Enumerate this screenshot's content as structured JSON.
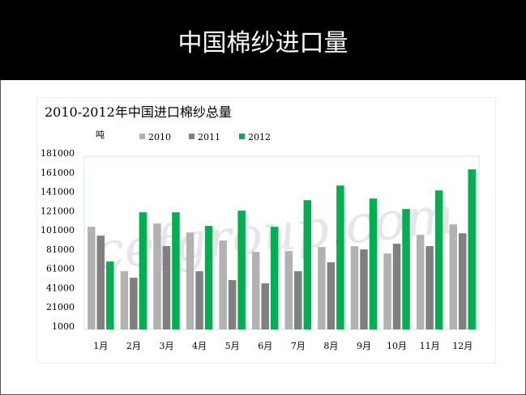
{
  "slide": {
    "title": "中国棉纱进口量"
  },
  "colors": {
    "2010": "#b2b2b2",
    "2011": "#808080",
    "2012": "#00b050",
    "header_bg": "#000000"
  },
  "watermark": "cefgroup.com",
  "chart_data": {
    "type": "bar",
    "title": "2010-2012年中国进口棉纱总量",
    "ylabel": "吨",
    "xlabel": "",
    "categories": [
      "1月",
      "2月",
      "3月",
      "4月",
      "5月",
      "6月",
      "7月",
      "8月",
      "9月",
      "10月",
      "11月",
      "12月"
    ],
    "yticks": [
      1000,
      21000,
      41000,
      61000,
      81000,
      101000,
      121000,
      141000,
      161000,
      181000
    ],
    "ylim": [
      1000,
      181000
    ],
    "legend_position": "top",
    "grid": false,
    "series": [
      {
        "name": "2010",
        "values": [
          104300,
          58100,
          107700,
          98400,
          90000,
          78300,
          79100,
          83300,
          84200,
          76600,
          95900,
          106800
        ]
      },
      {
        "name": "2011",
        "values": [
          95100,
          51400,
          84200,
          58100,
          48900,
          45500,
          58100,
          67400,
          80800,
          86700,
          84200,
          97600
        ]
      },
      {
        "name": "2012",
        "values": [
          68200,
          119400,
          119400,
          105200,
          121100,
          104300,
          132000,
          147200,
          133700,
          122800,
          142100,
          164000
        ]
      }
    ]
  }
}
